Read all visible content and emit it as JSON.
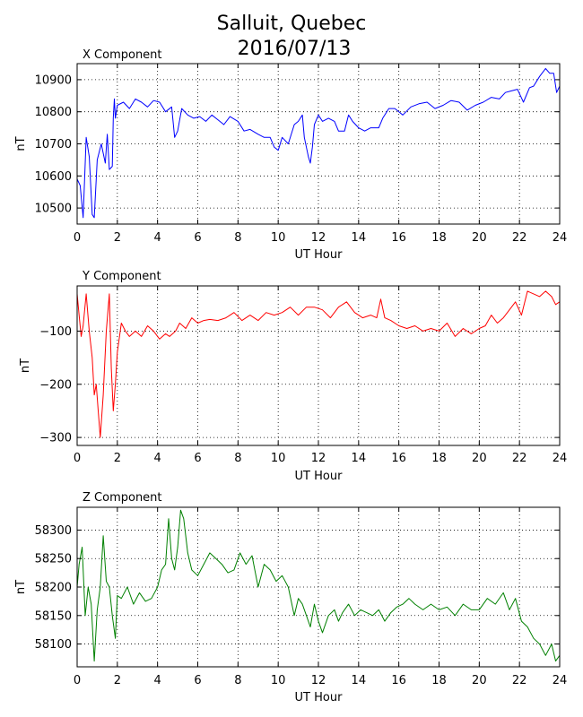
{
  "title_lines": [
    "Salluit, Quebec",
    "2016/07/13"
  ],
  "colors": {
    "x": "#0000ff",
    "y": "#ff0000",
    "z": "#008000",
    "grid": "#000000"
  },
  "chart_data": [
    {
      "type": "line",
      "title": "X Component",
      "xlabel": "UT Hour",
      "ylabel": "nT",
      "xlim": [
        0,
        24
      ],
      "ylim": [
        10450,
        10950
      ],
      "xticks": [
        0,
        2,
        4,
        6,
        8,
        10,
        12,
        14,
        16,
        18,
        20,
        22,
        24
      ],
      "yticks": [
        10500,
        10600,
        10700,
        10800,
        10900
      ],
      "grid": true,
      "series": [
        {
          "color": "#0000ff",
          "x": [
            0,
            0.15,
            0.3,
            0.45,
            0.6,
            0.75,
            0.85,
            1.0,
            1.2,
            1.4,
            1.5,
            1.6,
            1.75,
            1.8,
            1.85,
            1.9,
            2.0,
            2.3,
            2.6,
            2.9,
            3.2,
            3.5,
            3.8,
            4.1,
            4.4,
            4.7,
            4.85,
            5.0,
            5.2,
            5.5,
            5.8,
            6.1,
            6.4,
            6.7,
            7.0,
            7.3,
            7.6,
            8.0,
            8.3,
            8.6,
            9.0,
            9.3,
            9.6,
            9.8,
            10.0,
            10.2,
            10.5,
            10.8,
            11.0,
            11.2,
            11.3,
            11.5,
            11.6,
            11.7,
            11.8,
            12.0,
            12.2,
            12.5,
            12.8,
            13.0,
            13.3,
            13.5,
            13.7,
            14.0,
            14.3,
            14.6,
            15.0,
            15.2,
            15.5,
            15.8,
            16.2,
            16.6,
            17.0,
            17.4,
            17.8,
            18.2,
            18.6,
            19.0,
            19.4,
            19.8,
            20.2,
            20.6,
            21.0,
            21.3,
            21.6,
            21.9,
            22.2,
            22.5,
            22.7,
            23.0,
            23.3,
            23.5,
            23.7,
            23.85,
            24.0
          ],
          "y": [
            10590,
            10570,
            10470,
            10720,
            10660,
            10480,
            10470,
            10650,
            10700,
            10640,
            10730,
            10620,
            10630,
            10780,
            10840,
            10780,
            10820,
            10830,
            10810,
            10840,
            10830,
            10815,
            10835,
            10830,
            10800,
            10815,
            10720,
            10740,
            10810,
            10790,
            10780,
            10785,
            10770,
            10790,
            10775,
            10760,
            10785,
            10770,
            10740,
            10745,
            10730,
            10720,
            10720,
            10690,
            10680,
            10720,
            10700,
            10760,
            10770,
            10790,
            10720,
            10660,
            10640,
            10690,
            10760,
            10790,
            10770,
            10780,
            10770,
            10740,
            10740,
            10790,
            10770,
            10750,
            10740,
            10750,
            10750,
            10780,
            10810,
            10810,
            10790,
            10815,
            10825,
            10830,
            10810,
            10820,
            10835,
            10830,
            10805,
            10820,
            10830,
            10845,
            10840,
            10860,
            10865,
            10870,
            10830,
            10875,
            10880,
            10910,
            10935,
            10920,
            10920,
            10860,
            10880
          ]
        }
      ]
    },
    {
      "type": "line",
      "title": "Y Component",
      "xlabel": "UT Hour",
      "ylabel": "nT",
      "xlim": [
        0,
        24
      ],
      "ylim": [
        -315,
        -15
      ],
      "xticks": [
        0,
        2,
        4,
        6,
        8,
        10,
        12,
        14,
        16,
        18,
        20,
        22,
        24
      ],
      "yticks": [
        -300,
        -200,
        -100
      ],
      "grid": true,
      "series": [
        {
          "color": "#ff0000",
          "x": [
            0,
            0.1,
            0.2,
            0.3,
            0.45,
            0.6,
            0.75,
            0.85,
            0.95,
            1.05,
            1.15,
            1.3,
            1.45,
            1.6,
            1.7,
            1.8,
            1.9,
            2.0,
            2.2,
            2.4,
            2.6,
            2.9,
            3.2,
            3.5,
            3.8,
            4.1,
            4.4,
            4.6,
            4.9,
            5.1,
            5.4,
            5.7,
            6.0,
            6.3,
            6.6,
            7.0,
            7.4,
            7.8,
            8.2,
            8.6,
            9.0,
            9.4,
            9.8,
            10.2,
            10.6,
            11.0,
            11.4,
            11.8,
            12.2,
            12.6,
            13.0,
            13.4,
            13.8,
            14.2,
            14.6,
            14.9,
            15.1,
            15.3,
            15.6,
            16.0,
            16.4,
            16.8,
            17.2,
            17.6,
            18.0,
            18.4,
            18.8,
            19.2,
            19.6,
            20.0,
            20.3,
            20.6,
            20.9,
            21.2,
            21.5,
            21.8,
            22.1,
            22.4,
            22.7,
            23.0,
            23.3,
            23.6,
            23.8,
            24.0
          ],
          "y": [
            -30,
            -70,
            -110,
            -90,
            -30,
            -100,
            -150,
            -220,
            -200,
            -250,
            -300,
            -220,
            -100,
            -30,
            -170,
            -250,
            -200,
            -140,
            -85,
            -100,
            -110,
            -100,
            -110,
            -90,
            -100,
            -115,
            -105,
            -110,
            -100,
            -85,
            -95,
            -75,
            -85,
            -80,
            -78,
            -80,
            -75,
            -65,
            -80,
            -70,
            -80,
            -65,
            -70,
            -65,
            -55,
            -70,
            -55,
            -55,
            -60,
            -75,
            -55,
            -45,
            -65,
            -75,
            -70,
            -75,
            -40,
            -75,
            -80,
            -90,
            -95,
            -90,
            -100,
            -95,
            -100,
            -85,
            -110,
            -95,
            -105,
            -95,
            -90,
            -70,
            -85,
            -75,
            -60,
            -45,
            -70,
            -25,
            -30,
            -35,
            -25,
            -35,
            -50,
            -45
          ]
        }
      ]
    },
    {
      "type": "line",
      "title": "Z Component",
      "xlabel": "UT Hour",
      "ylabel": "nT",
      "xlim": [
        0,
        24
      ],
      "ylim": [
        58060,
        58340
      ],
      "xticks": [
        0,
        2,
        4,
        6,
        8,
        10,
        12,
        14,
        16,
        18,
        20,
        22,
        24
      ],
      "yticks": [
        58100,
        58150,
        58200,
        58250,
        58300
      ],
      "grid": true,
      "series": [
        {
          "color": "#008000",
          "x": [
            0,
            0.1,
            0.25,
            0.4,
            0.55,
            0.7,
            0.85,
            1.0,
            1.15,
            1.3,
            1.45,
            1.6,
            1.75,
            1.9,
            2.0,
            2.2,
            2.5,
            2.8,
            3.1,
            3.4,
            3.7,
            4.0,
            4.2,
            4.4,
            4.55,
            4.7,
            4.85,
            5.0,
            5.15,
            5.3,
            5.5,
            5.7,
            6.0,
            6.3,
            6.6,
            6.9,
            7.2,
            7.5,
            7.8,
            8.1,
            8.4,
            8.7,
            9.0,
            9.3,
            9.6,
            9.9,
            10.2,
            10.5,
            10.8,
            11.0,
            11.2,
            11.4,
            11.6,
            11.8,
            12.0,
            12.2,
            12.5,
            12.8,
            13.0,
            13.2,
            13.5,
            13.8,
            14.1,
            14.4,
            14.7,
            15.0,
            15.3,
            15.6,
            15.9,
            16.2,
            16.5,
            16.8,
            17.2,
            17.6,
            18.0,
            18.4,
            18.8,
            19.2,
            19.6,
            20.0,
            20.4,
            20.8,
            21.2,
            21.5,
            21.8,
            22.1,
            22.4,
            22.7,
            23.0,
            23.3,
            23.6,
            23.8,
            24.0
          ],
          "y": [
            58200,
            58240,
            58270,
            58150,
            58200,
            58170,
            58070,
            58160,
            58200,
            58290,
            58210,
            58200,
            58150,
            58110,
            58185,
            58180,
            58200,
            58170,
            58190,
            58175,
            58180,
            58200,
            58230,
            58240,
            58320,
            58250,
            58230,
            58270,
            58335,
            58320,
            58260,
            58230,
            58220,
            58240,
            58260,
            58250,
            58240,
            58225,
            58230,
            58260,
            58240,
            58255,
            58200,
            58240,
            58230,
            58210,
            58220,
            58200,
            58150,
            58180,
            58170,
            58150,
            58130,
            58170,
            58140,
            58120,
            58150,
            58160,
            58140,
            58155,
            58170,
            58150,
            58160,
            58155,
            58150,
            58160,
            58140,
            58155,
            58165,
            58170,
            58180,
            58170,
            58160,
            58170,
            58160,
            58165,
            58150,
            58170,
            58160,
            58160,
            58180,
            58170,
            58190,
            58160,
            58180,
            58140,
            58130,
            58110,
            58100,
            58080,
            58100,
            58070,
            58080
          ]
        }
      ]
    }
  ]
}
